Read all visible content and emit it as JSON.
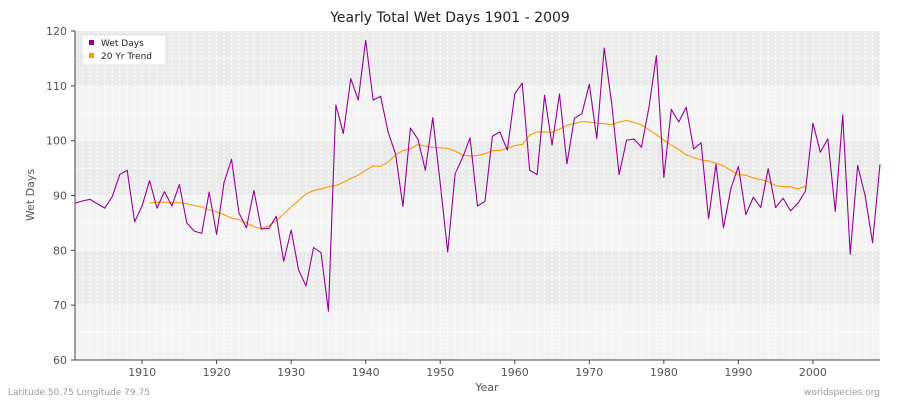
{
  "chart_data": {
    "type": "line",
    "title": "Yearly Total Wet Days 1901 - 2009",
    "xlabel": "Year",
    "ylabel": "Wet Days",
    "xlim": [
      1901,
      2009
    ],
    "ylim": [
      60,
      120
    ],
    "x_ticks": [
      1910,
      1920,
      1930,
      1940,
      1950,
      1960,
      1970,
      1980,
      1990,
      2000
    ],
    "y_ticks": [
      60,
      70,
      80,
      90,
      100,
      110,
      120
    ],
    "grid": true,
    "legend_position": "top-left",
    "series": [
      {
        "name": "Wet Days",
        "color": "#990099",
        "x": [
          1901,
          1902,
          1903,
          1904,
          1905,
          1906,
          1907,
          1908,
          1909,
          1910,
          1911,
          1912,
          1913,
          1914,
          1915,
          1916,
          1917,
          1918,
          1919,
          1920,
          1921,
          1922,
          1923,
          1924,
          1925,
          1926,
          1927,
          1928,
          1929,
          1930,
          1931,
          1932,
          1933,
          1934,
          1935,
          1936,
          1937,
          1938,
          1939,
          1940,
          1941,
          1942,
          1943,
          1944,
          1945,
          1946,
          1947,
          1948,
          1949,
          1950,
          1951,
          1952,
          1953,
          1954,
          1955,
          1956,
          1957,
          1958,
          1959,
          1960,
          1961,
          1962,
          1963,
          1964,
          1965,
          1966,
          1967,
          1968,
          1969,
          1970,
          1971,
          1972,
          1973,
          1974,
          1975,
          1976,
          1977,
          1978,
          1979,
          1980,
          1981,
          1982,
          1983,
          1984,
          1985,
          1986,
          1987,
          1988,
          1989,
          1990,
          1991,
          1992,
          1993,
          1994,
          1995,
          1996,
          1997,
          1998,
          1999,
          2000,
          2001,
          2002,
          2003,
          2004,
          2005,
          2006,
          2007,
          2008,
          2009
        ],
        "values": [
          88.6,
          89.0,
          89.3,
          88.5,
          87.7,
          89.8,
          93.8,
          94.6,
          85.2,
          88.1,
          92.7,
          87.7,
          90.7,
          88.1,
          92.0,
          85.0,
          83.5,
          83.1,
          90.6,
          82.9,
          92.4,
          96.6,
          86.8,
          84.1,
          90.9,
          83.9,
          84.0,
          86.2,
          78.0,
          83.7,
          76.4,
          73.5,
          80.5,
          79.6,
          68.9,
          106.5,
          101.3,
          111.3,
          107.4,
          118.3,
          107.4,
          108.1,
          101.6,
          97.6,
          88.0,
          102.3,
          100.3,
          94.6,
          104.2,
          92.2,
          79.7,
          94.0,
          96.9,
          100.5,
          88.1,
          88.9,
          100.8,
          101.6,
          98.3,
          108.5,
          110.5,
          94.6,
          93.8,
          108.3,
          99.2,
          108.5,
          95.8,
          104.1,
          104.9,
          110.3,
          100.4,
          116.9,
          106.8,
          93.8,
          100.1,
          100.3,
          98.8,
          106.1,
          115.5,
          93.3,
          105.7,
          103.4,
          106.1,
          98.5,
          99.6,
          85.8,
          95.7,
          84.1,
          91.3,
          95.3,
          86.5,
          89.7,
          87.8,
          94.9,
          87.8,
          89.5,
          87.2,
          88.6,
          90.8,
          103.2,
          97.9,
          100.3,
          87.1,
          104.7,
          79.3,
          95.5,
          90.0,
          81.4,
          95.7
        ]
      },
      {
        "name": "20 Yr Trend",
        "color": "#ff9900",
        "x": [
          1911,
          1912,
          1913,
          1914,
          1915,
          1916,
          1917,
          1918,
          1919,
          1920,
          1921,
          1922,
          1923,
          1924,
          1925,
          1926,
          1927,
          1928,
          1929,
          1930,
          1931,
          1932,
          1933,
          1934,
          1935,
          1936,
          1937,
          1938,
          1939,
          1940,
          1941,
          1942,
          1943,
          1944,
          1945,
          1946,
          1947,
          1948,
          1949,
          1950,
          1951,
          1952,
          1953,
          1954,
          1955,
          1956,
          1957,
          1958,
          1959,
          1960,
          1961,
          1962,
          1963,
          1964,
          1965,
          1966,
          1967,
          1968,
          1969,
          1970,
          1971,
          1972,
          1973,
          1974,
          1975,
          1976,
          1977,
          1978,
          1979,
          1980,
          1981,
          1982,
          1983,
          1984,
          1985,
          1986,
          1987,
          1988,
          1989,
          1990,
          1991,
          1992,
          1993,
          1994,
          1995,
          1996,
          1997,
          1998,
          1999
        ],
        "values": [
          88.6,
          88.8,
          88.8,
          88.7,
          88.7,
          88.5,
          88.2,
          87.9,
          87.4,
          87.0,
          86.5,
          85.9,
          85.6,
          85.0,
          84.3,
          83.9,
          84.5,
          85.4,
          86.6,
          87.9,
          89.1,
          90.3,
          90.9,
          91.2,
          91.6,
          91.8,
          92.4,
          93.1,
          93.7,
          94.6,
          95.4,
          95.3,
          96.1,
          97.4,
          98.2,
          98.5,
          99.3,
          99.0,
          98.8,
          98.7,
          98.6,
          98.1,
          97.4,
          97.2,
          97.3,
          97.6,
          98.2,
          98.2,
          98.6,
          99.1,
          99.3,
          101.0,
          101.6,
          101.6,
          101.5,
          102.1,
          102.8,
          103.1,
          103.5,
          103.4,
          103.2,
          103.1,
          102.9,
          103.4,
          103.7,
          103.3,
          102.9,
          102.0,
          101.1,
          100.1,
          99.2,
          98.4,
          97.4,
          96.9,
          96.5,
          96.3,
          95.9,
          95.4,
          94.6,
          93.8,
          93.7,
          93.2,
          92.9,
          92.5,
          91.8,
          91.6,
          91.6,
          91.2,
          91.7
        ]
      }
    ]
  },
  "footer": {
    "left": "Latitude 50.75 Longitude 79.75",
    "right": "worldspecies.org"
  },
  "style": {
    "plot_background": "#f4f4f4",
    "band_color": "#ebebeb",
    "grid_color": "#ffffff",
    "axis_color": "#444444"
  }
}
